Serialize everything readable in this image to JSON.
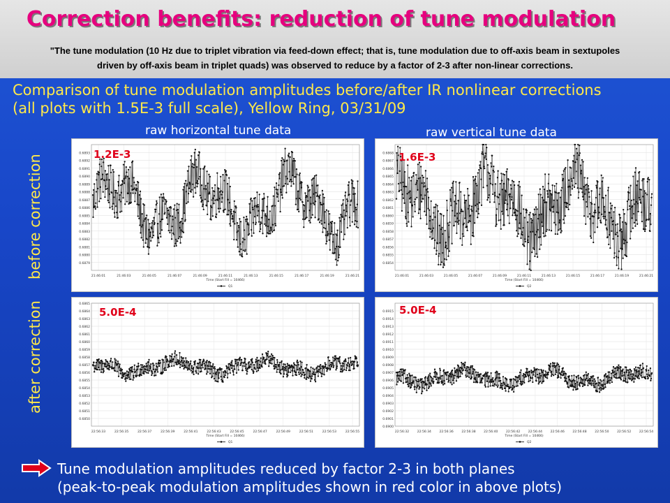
{
  "slide": {
    "title": "Correction benefits: reduction of tune modulation",
    "quote_line1": "\"The tune modulation (10 Hz due to triplet vibration via feed-down effect; that is, tune modulation due to off-axis beam in sextupoles",
    "quote_line2": "driven by off-axis beam in triplet quads) was observed to reduce by a factor of 2-3 after non-linear corrections.",
    "heading_line1": "Comparison of tune modulation amplitudes before/after IR nonlinear corrections",
    "heading_line2": "(all plots with 1.5E-3 full scale), Yellow Ring, 03/31/09",
    "col_horizontal": "raw horizontal tune data",
    "col_vertical": "raw vertical tune data",
    "row_before": "before correction",
    "row_after": "after correction",
    "conclusion_line1": "Tune modulation amplitudes reduced by factor 2-3 in both planes",
    "conclusion_line2": "(peak-to-peak modulation amplitudes shown in red color in above plots)",
    "colors": {
      "title": "#e6007e",
      "heading": "#ffe94a",
      "amplitude": "#e0001a",
      "arrow": "#e0001a"
    },
    "icons": {
      "arrow": "right-arrow-icon"
    }
  },
  "chart_data": [
    {
      "type": "scatter",
      "id": "h_before",
      "annotation": "1.2E-3",
      "xlabel": "Time (Start Fill = 10466)",
      "legend": "Q1",
      "ylim": [
        0.6878,
        0.6894
      ],
      "yticks": [
        "0.6893",
        "0.6892",
        "0.6891",
        "0.6890",
        "0.6889",
        "0.6888",
        "0.6887",
        "0.6886",
        "0.6885",
        "0.6884",
        "0.6883",
        "0.6882",
        "0.6881",
        "0.6880",
        "0.6879"
      ],
      "xticks": [
        "21:46:01",
        "21:46:03",
        "21:46:05",
        "21:46:07",
        "21:46:09",
        "21:46:11",
        "21:46:13",
        "21:46:15",
        "21:46:17",
        "21:46:19",
        "21:46:21"
      ],
      "signal": {
        "center": 0.68863,
        "amp": 0.0003,
        "noise": 0.0006
      }
    },
    {
      "type": "scatter",
      "id": "v_before",
      "annotation": "1.6E-3",
      "xlabel": "Time (Start Fill = 10466)",
      "legend": "Q2",
      "ylim": [
        0.6853,
        0.6869
      ],
      "yticks": [
        "0.6868",
        "0.6867",
        "0.6866",
        "0.6865",
        "0.6864",
        "0.6863",
        "0.6862",
        "0.6861",
        "0.6860",
        "0.6859",
        "0.6858",
        "0.6857",
        "0.6856",
        "0.6855",
        "0.6854"
      ],
      "xticks": [
        "21:46:01",
        "21:46:03",
        "21:46:05",
        "21:46:07",
        "21:46:09",
        "21:46:11",
        "21:46:13",
        "21:46:15",
        "21:46:17",
        "21:46:19",
        "21:46:21"
      ],
      "signal": {
        "center": 0.68612,
        "amp": 0.0003,
        "noise": 0.0008
      }
    },
    {
      "type": "scatter",
      "id": "h_after",
      "annotation": "5.0E-4",
      "xlabel": "Time (Start Fill = 10466)",
      "legend": "Q1",
      "ylim": [
        0.6849,
        0.6865
      ],
      "yticks": [
        "0.6865",
        "0.6864",
        "0.6863",
        "0.6862",
        "0.6861",
        "0.6860",
        "0.6859",
        "0.6858",
        "0.6857",
        "0.6856",
        "0.6855",
        "0.6854",
        "0.6853",
        "0.6852",
        "0.6851",
        "0.6850"
      ],
      "xticks": [
        "22:56:33",
        "22:56:35",
        "22:56:37",
        "22:56:39",
        "22:56:41",
        "22:56:43",
        "22:56:45",
        "22:56:47",
        "22:56:49",
        "22:56:51",
        "22:56:53",
        "22:56:55"
      ],
      "signal": {
        "center": 0.68567,
        "amp": 7e-05,
        "noise": 0.0002
      }
    },
    {
      "type": "scatter",
      "id": "v_after",
      "annotation": "5.0E-4",
      "xlabel": "Time (Start Fill = 10466)",
      "legend": "Q2",
      "ylim": [
        0.69,
        0.6916
      ],
      "yticks": [
        "0.6915",
        "0.6914",
        "0.6913",
        "0.6912",
        "0.6911",
        "0.6910",
        "0.6909",
        "0.6908",
        "0.6907",
        "0.6906",
        "0.6905",
        "0.6904",
        "0.6903",
        "0.6902",
        "0.6901",
        "0.6900"
      ],
      "xticks": [
        "22:56:32",
        "22:56:34",
        "22:56:36",
        "22:56:38",
        "22:56:40",
        "22:56:42",
        "22:56:44",
        "22:56:46",
        "22:56:48",
        "22:56:50",
        "22:56:52",
        "22:56:54"
      ],
      "signal": {
        "center": 0.69063,
        "amp": 7e-05,
        "noise": 0.0002
      }
    }
  ]
}
